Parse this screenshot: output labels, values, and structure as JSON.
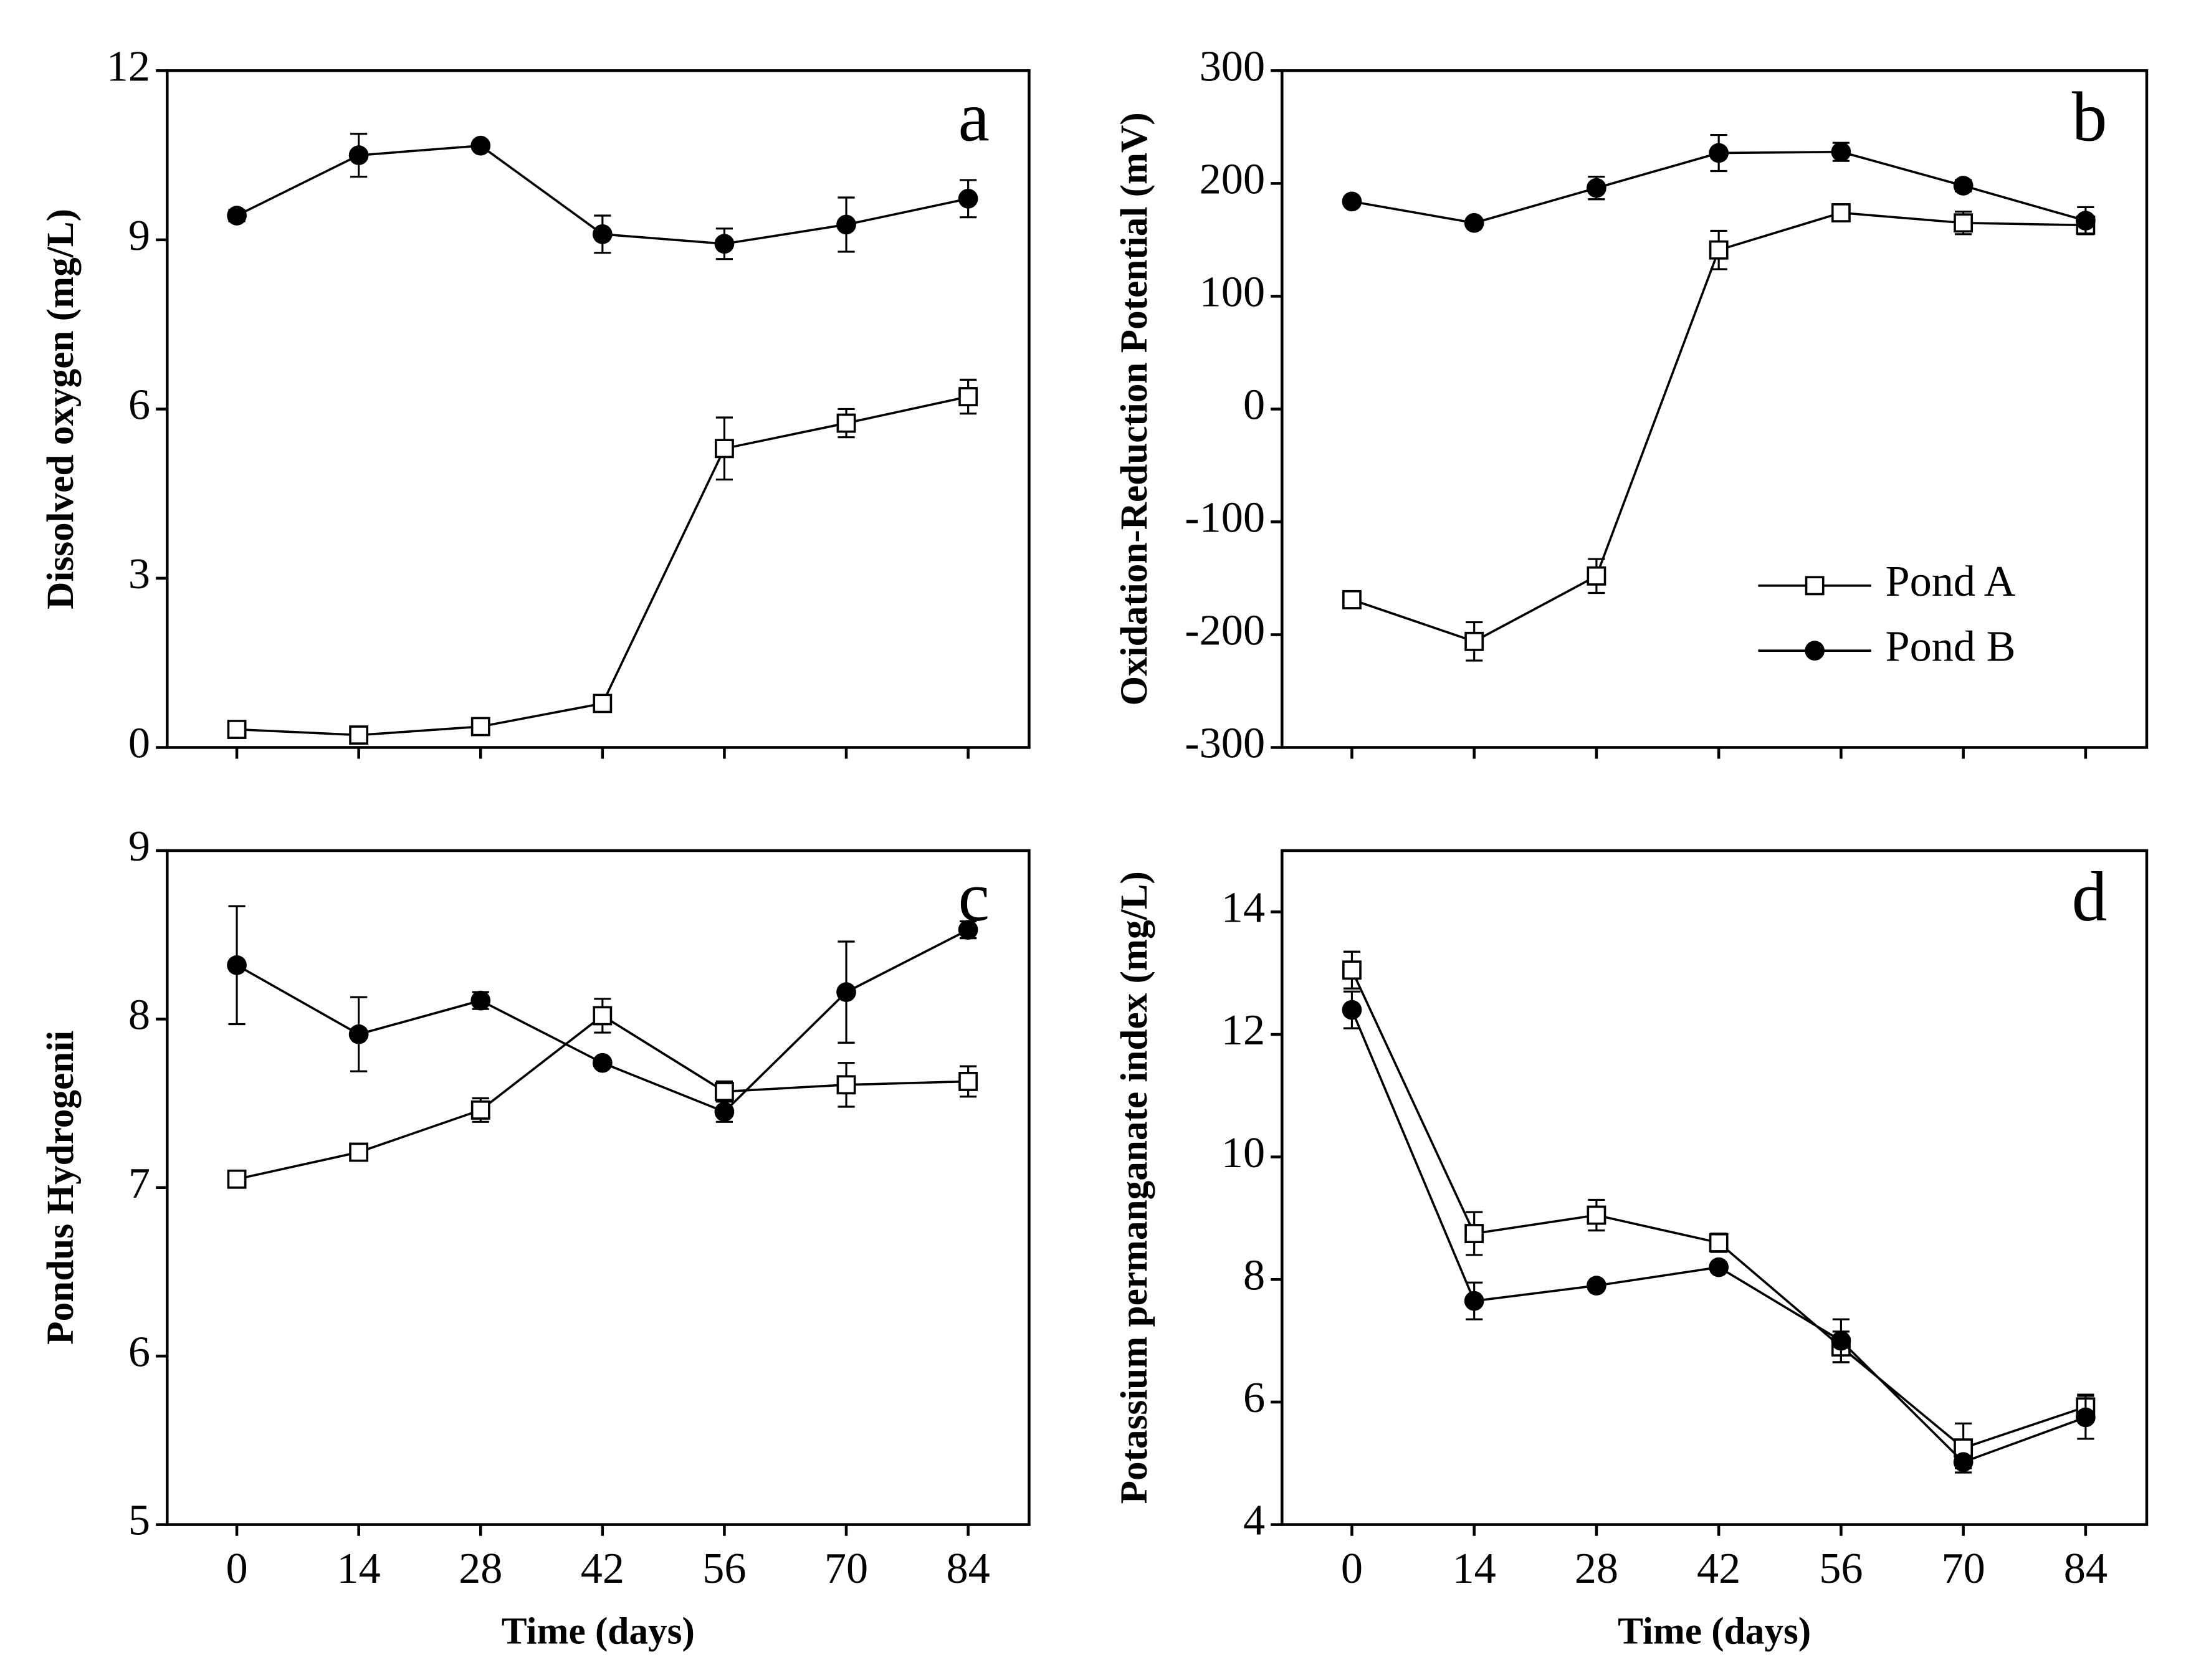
{
  "chart_data": [
    {
      "type": "line",
      "annotation": "a",
      "ylabel": "Dissolved oxygen (mg/L)",
      "x": [
        0,
        14,
        28,
        42,
        56,
        70,
        84
      ],
      "xlim": [
        -8,
        91
      ],
      "xticks": [
        0,
        14,
        28,
        42,
        56,
        70,
        84
      ],
      "show_xtick_labels": false,
      "ylim": [
        0,
        12
      ],
      "yticks": [
        0,
        3,
        6,
        9,
        12
      ],
      "series": [
        {
          "name": "Pond A",
          "color": "#000000",
          "marker": "square",
          "values": [
            0.32,
            0.22,
            0.37,
            0.78,
            5.3,
            5.75,
            6.22
          ],
          "errors": [
            0.1,
            0.1,
            0.1,
            0.12,
            0.55,
            0.25,
            0.3
          ]
        },
        {
          "name": "Pond B",
          "color": "#000000",
          "marker": "circle",
          "values": [
            9.43,
            10.5,
            10.67,
            9.1,
            8.93,
            9.27,
            9.73
          ],
          "errors": [
            0.1,
            0.38,
            0.05,
            0.33,
            0.27,
            0.48,
            0.33
          ]
        }
      ]
    },
    {
      "type": "line",
      "annotation": "b",
      "ylabel": "Oxidation-Reduction Potential (mV)",
      "x": [
        0,
        14,
        28,
        42,
        56,
        70,
        84
      ],
      "xlim": [
        -8,
        91
      ],
      "xticks": [
        0,
        14,
        28,
        42,
        56,
        70,
        84
      ],
      "show_xtick_labels": false,
      "ylim": [
        -300,
        300
      ],
      "yticks": [
        -300,
        -200,
        -100,
        0,
        100,
        200,
        300
      ],
      "legend": "center right",
      "series": [
        {
          "name": "Pond A",
          "color": "#000000",
          "marker": "square",
          "values": [
            -169,
            -206,
            -148,
            141,
            174,
            165,
            163
          ],
          "errors": [
            5,
            17,
            15,
            17,
            7,
            10,
            8
          ]
        },
        {
          "name": "Pond B",
          "color": "#000000",
          "marker": "circle",
          "values": [
            184,
            165,
            196,
            227,
            228,
            198,
            167
          ],
          "errors": [
            4,
            3,
            10,
            16,
            8,
            5,
            12
          ]
        }
      ]
    },
    {
      "type": "line",
      "annotation": "c",
      "ylabel": "Pondus Hydrogenii",
      "xlabel": "Time (days)",
      "x": [
        0,
        14,
        28,
        42,
        56,
        70,
        84
      ],
      "xlim": [
        -8,
        91
      ],
      "xticks": [
        0,
        14,
        28,
        42,
        56,
        70,
        84
      ],
      "show_xtick_labels": true,
      "ylim": [
        5,
        9
      ],
      "yticks": [
        5,
        6,
        7,
        8,
        9
      ],
      "series": [
        {
          "name": "Pond A",
          "color": "#000000",
          "marker": "square",
          "values": [
            7.05,
            7.21,
            7.46,
            8.02,
            7.57,
            7.61,
            7.63
          ],
          "errors": [
            0.03,
            0.03,
            0.07,
            0.1,
            0.06,
            0.13,
            0.09
          ]
        },
        {
          "name": "Pond B",
          "color": "#000000",
          "marker": "circle",
          "values": [
            8.32,
            7.91,
            8.11,
            7.74,
            7.45,
            8.16,
            8.53
          ],
          "errors": [
            0.35,
            0.22,
            0.05,
            0.02,
            0.06,
            0.3,
            0.05
          ]
        }
      ]
    },
    {
      "type": "line",
      "annotation": "d",
      "ylabel": "Potassium permanganate index (mg/L)",
      "xlabel": "Time (days)",
      "x": [
        0,
        14,
        28,
        42,
        56,
        70,
        84
      ],
      "xlim": [
        -8,
        91
      ],
      "xticks": [
        0,
        14,
        28,
        42,
        56,
        70,
        84
      ],
      "show_xtick_labels": true,
      "ylim": [
        4,
        15
      ],
      "yticks": [
        4,
        6,
        8,
        10,
        12,
        14
      ],
      "series": [
        {
          "name": "Pond A",
          "color": "#000000",
          "marker": "square",
          "values": [
            13.05,
            8.75,
            9.05,
            8.6,
            6.9,
            5.25,
            5.92
          ],
          "errors": [
            0.3,
            0.35,
            0.25,
            0.15,
            0.25,
            0.4,
            0.2
          ]
        },
        {
          "name": "Pond B",
          "color": "#000000",
          "marker": "circle",
          "values": [
            12.4,
            7.65,
            7.9,
            8.2,
            7.0,
            5.02,
            5.75
          ],
          "errors": [
            0.3,
            0.3,
            0.05,
            0.05,
            0.35,
            0.1,
            0.35
          ]
        }
      ]
    }
  ]
}
